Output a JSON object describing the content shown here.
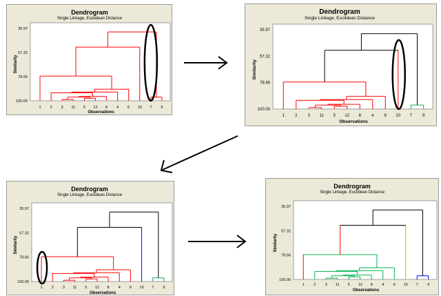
{
  "panels": [
    {
      "title": "Dendrogram",
      "subtitle": "Single Linkage, Euclidean Distance",
      "y_label": "Similarity",
      "x_label": "Observations",
      "y_ticks": [
        "35.97",
        "57.32",
        "78.66",
        "100.00"
      ],
      "x_ticks": [
        "1",
        "2",
        "3",
        "11",
        "5",
        "12",
        "8",
        "4",
        "6",
        "10",
        "7",
        "9"
      ],
      "colors": {
        "main": "#ff0000",
        "top": "#ff0000",
        "right": "#ff0000",
        "leaf10": "#ff0000"
      }
    },
    {
      "title": "Dendrogram",
      "subtitle": "Single Linkage, Euclidean Distance",
      "y_label": "Similarity",
      "x_label": "Observations",
      "y_ticks": [
        "35.97",
        "57.32",
        "78.66",
        "100.00"
      ],
      "x_ticks": [
        "1",
        "2",
        "3",
        "11",
        "5",
        "12",
        "8",
        "4",
        "6",
        "10",
        "7",
        "9"
      ],
      "colors": {
        "main": "#ff0000",
        "top": "#000000",
        "right": "#00b050",
        "leaf10": "#ff0000"
      }
    },
    {
      "title": "Dendrogram",
      "subtitle": "Single Linkage, Euclidean Distance",
      "y_label": "Similarity",
      "x_label": "Observations",
      "y_ticks": [
        "35.97",
        "57.32",
        "78.66",
        "100.00"
      ],
      "x_ticks": [
        "1",
        "2",
        "3",
        "11",
        "5",
        "12",
        "8",
        "4",
        "6",
        "10",
        "7",
        "9"
      ],
      "colors": {
        "main": "#ff0000",
        "top": "#000000",
        "right": "#00b050",
        "leaf10": "#0000ff"
      }
    },
    {
      "title": "Dendrogram",
      "subtitle": "Single Linkage, Euclidean Distance",
      "y_label": "Similarity",
      "x_label": "Observations",
      "y_ticks": [
        "35.97",
        "57.32",
        "78.66",
        "100.00"
      ],
      "x_ticks": [
        "1",
        "2",
        "3",
        "11",
        "5",
        "12",
        "8",
        "4",
        "6",
        "10",
        "7",
        "9"
      ],
      "colors": {
        "main": "#00b050",
        "top": "#000000",
        "right": "#0000ff",
        "leaf10": "#ff9900",
        "leaf1": "#ff0000"
      }
    }
  ]
}
